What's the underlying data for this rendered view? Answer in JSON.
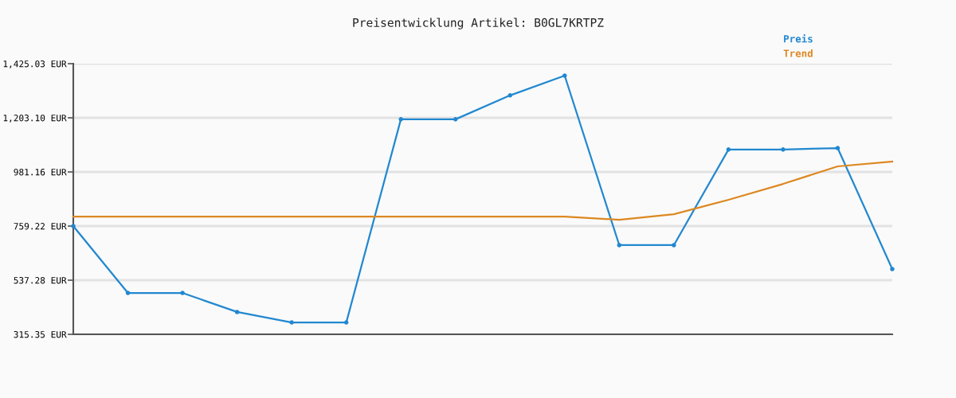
{
  "chart_data": {
    "type": "line",
    "title": "Preisentwicklung Artikel: B0GL7KRTPZ",
    "categories": [
      null,
      null,
      null,
      null,
      null,
      null,
      null,
      null,
      null,
      null,
      null,
      null,
      null,
      null,
      null,
      null
    ],
    "series": [
      {
        "name": "Preis",
        "color": "#2288d0",
        "marker": "circle",
        "values": [
          759,
          485,
          485,
          407,
          364,
          364,
          1197,
          1197,
          1295,
          1376,
          681,
          681,
          1073,
          1073,
          1079,
          583
        ]
      },
      {
        "name": "Trend",
        "color": "#dd8822",
        "marker": "none",
        "values": [
          798,
          798,
          798,
          798,
          798,
          798,
          798,
          798,
          798,
          798,
          785,
          808,
          867,
          932,
          1004,
          1024
        ]
      }
    ],
    "ylim": [
      315.35,
      1425.03
    ],
    "yticks": [
      {
        "value": 315.35,
        "label": "315.35 EUR"
      },
      {
        "value": 537.28,
        "label": "537.28 EUR"
      },
      {
        "value": 759.22,
        "label": "759.22 EUR"
      },
      {
        "value": 981.16,
        "label": "981.16 EUR"
      },
      {
        "value": 1203.1,
        "label": "1,203.10 EUR"
      },
      {
        "value": 1425.03,
        "label": "1,425.03 EUR"
      }
    ],
    "grid": "y",
    "legend": "top right",
    "tick_labels": "y"
  }
}
